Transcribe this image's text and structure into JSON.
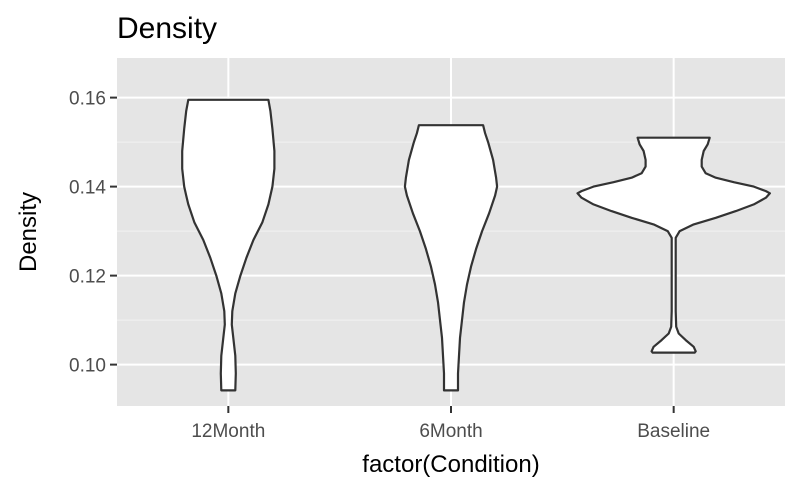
{
  "chart_data": {
    "type": "violin",
    "title": "Density",
    "xlabel": "factor(Condition)",
    "ylabel": "Density",
    "categories": [
      "12Month",
      "6Month",
      "Baseline"
    ],
    "ylim": [
      0.0907,
      0.1689
    ],
    "yticks": [
      0.1,
      0.12,
      0.14,
      0.16
    ],
    "ytick_labels": [
      "0.10",
      "0.12",
      "0.14",
      "0.16"
    ],
    "grid": true,
    "legend": "none",
    "colors": {
      "panel_background": "#e5e5e5",
      "grid_major": "#ffffff",
      "grid_minor": "#f2f2f2",
      "violin_fill": "#ffffff",
      "violin_outline": "#333333"
    },
    "violins": [
      {
        "category": "12Month",
        "range": [
          0.0942,
          0.1595
        ],
        "profile": [
          [
            0.1595,
            0.4
          ],
          [
            0.157,
            0.42
          ],
          [
            0.153,
            0.44
          ],
          [
            0.148,
            0.46
          ],
          [
            0.144,
            0.46
          ],
          [
            0.14,
            0.44
          ],
          [
            0.138,
            0.42
          ],
          [
            0.136,
            0.4
          ],
          [
            0.132,
            0.34
          ],
          [
            0.128,
            0.25
          ],
          [
            0.124,
            0.18
          ],
          [
            0.12,
            0.12
          ],
          [
            0.116,
            0.07
          ],
          [
            0.112,
            0.04
          ],
          [
            0.109,
            0.035
          ],
          [
            0.106,
            0.05
          ],
          [
            0.102,
            0.07
          ],
          [
            0.098,
            0.075
          ],
          [
            0.0942,
            0.07
          ]
        ]
      },
      {
        "category": "6Month",
        "range": [
          0.0942,
          0.1538
        ],
        "profile": [
          [
            0.1538,
            0.32
          ],
          [
            0.152,
            0.34
          ],
          [
            0.15,
            0.37
          ],
          [
            0.146,
            0.42
          ],
          [
            0.142,
            0.45
          ],
          [
            0.14,
            0.46
          ],
          [
            0.138,
            0.44
          ],
          [
            0.134,
            0.38
          ],
          [
            0.13,
            0.31
          ],
          [
            0.126,
            0.25
          ],
          [
            0.122,
            0.2
          ],
          [
            0.118,
            0.16
          ],
          [
            0.114,
            0.13
          ],
          [
            0.11,
            0.11
          ],
          [
            0.106,
            0.09
          ],
          [
            0.102,
            0.08
          ],
          [
            0.098,
            0.07
          ],
          [
            0.0942,
            0.07
          ]
        ]
      },
      {
        "category": "Baseline",
        "range": [
          0.1027,
          0.151
        ],
        "profile": [
          [
            0.151,
            0.36
          ],
          [
            0.1495,
            0.34
          ],
          [
            0.148,
            0.3
          ],
          [
            0.146,
            0.28
          ],
          [
            0.1445,
            0.28
          ],
          [
            0.143,
            0.32
          ],
          [
            0.142,
            0.42
          ],
          [
            0.141,
            0.6
          ],
          [
            0.14,
            0.8
          ],
          [
            0.139,
            0.92
          ],
          [
            0.1385,
            0.96
          ],
          [
            0.1375,
            0.92
          ],
          [
            0.136,
            0.8
          ],
          [
            0.1345,
            0.62
          ],
          [
            0.133,
            0.42
          ],
          [
            0.1315,
            0.2
          ],
          [
            0.13,
            0.06
          ],
          [
            0.1285,
            0.02
          ],
          [
            0.126,
            0.02
          ],
          [
            0.12,
            0.02
          ],
          [
            0.112,
            0.02
          ],
          [
            0.1085,
            0.025
          ],
          [
            0.107,
            0.05
          ],
          [
            0.1055,
            0.12
          ],
          [
            0.104,
            0.2
          ],
          [
            0.103,
            0.22
          ],
          [
            0.1027,
            0.21
          ]
        ]
      }
    ]
  }
}
